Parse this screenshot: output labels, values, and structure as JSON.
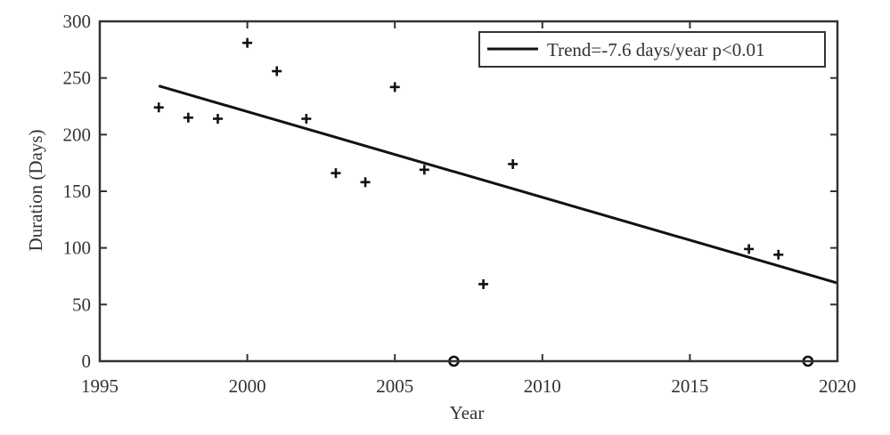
{
  "chart_data": {
    "type": "scatter",
    "title": "",
    "xlabel": "Year",
    "ylabel": "Duration (Days)",
    "xlim": [
      1995,
      2020
    ],
    "ylim": [
      0,
      300
    ],
    "xticks": [
      1995,
      2000,
      2005,
      2010,
      2015,
      2020
    ],
    "yticks": [
      0,
      50,
      100,
      150,
      200,
      250,
      300
    ],
    "grid": false,
    "legend_position": "top-right",
    "series": [
      {
        "marker": "plus",
        "color": "#111111",
        "points": [
          {
            "x": 1997,
            "y": 224
          },
          {
            "x": 1998,
            "y": 215
          },
          {
            "x": 1999,
            "y": 214
          },
          {
            "x": 2000,
            "y": 281
          },
          {
            "x": 2001,
            "y": 256
          },
          {
            "x": 2002,
            "y": 214
          },
          {
            "x": 2003,
            "y": 166
          },
          {
            "x": 2004,
            "y": 158
          },
          {
            "x": 2005,
            "y": 242
          },
          {
            "x": 2006,
            "y": 169
          },
          {
            "x": 2008,
            "y": 68
          },
          {
            "x": 2009,
            "y": 174
          },
          {
            "x": 2017,
            "y": 99
          },
          {
            "x": 2018,
            "y": 94
          }
        ]
      },
      {
        "marker": "circle",
        "color": "#111111",
        "points": [
          {
            "x": 2007,
            "y": 0
          },
          {
            "x": 2019,
            "y": 0
          }
        ]
      }
    ],
    "trend": {
      "name": "Trend=-7.6 days/year p<0.01",
      "color": "#111111",
      "start": {
        "x": 1997,
        "y": 243
      },
      "end": {
        "x": 2020,
        "y": 69
      }
    }
  }
}
